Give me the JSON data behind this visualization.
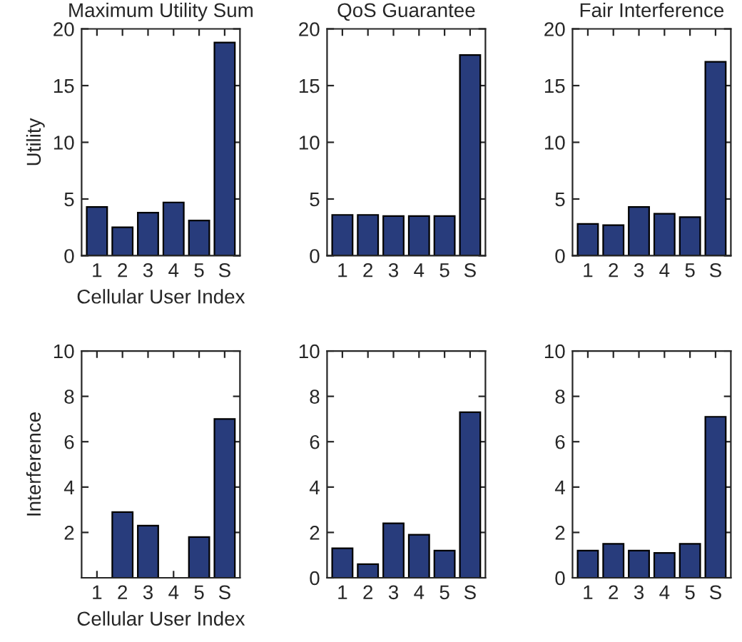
{
  "chart_data": [
    {
      "type": "bar",
      "title": "Maximum Utility Sum",
      "xlabel": "Cellular User Index",
      "ylabel": "Utility",
      "categories": [
        "1",
        "2",
        "3",
        "4",
        "5",
        "S"
      ],
      "values": [
        4.3,
        2.5,
        3.8,
        4.7,
        3.1,
        18.8
      ],
      "color": "#283c7c",
      "ylim": [
        0,
        20
      ],
      "yticks": [
        0,
        5,
        10,
        15,
        20
      ],
      "grid": false
    },
    {
      "type": "bar",
      "title": "QoS Guarantee",
      "categories": [
        "1",
        "2",
        "3",
        "4",
        "5",
        "S"
      ],
      "values": [
        3.6,
        3.6,
        3.5,
        3.5,
        3.5,
        17.7
      ],
      "color": "#283c7c",
      "ylim": [
        0,
        20
      ],
      "yticks": [
        0,
        5,
        10,
        15,
        20
      ],
      "grid": false
    },
    {
      "type": "bar",
      "title": "Fair Interference",
      "categories": [
        "1",
        "2",
        "3",
        "4",
        "5",
        "S"
      ],
      "values": [
        2.8,
        2.7,
        4.3,
        3.7,
        3.4,
        17.1
      ],
      "color": "#283c7c",
      "ylim": [
        0,
        20
      ],
      "yticks": [
        0,
        5,
        10,
        15,
        20
      ],
      "grid": false
    },
    {
      "type": "bar",
      "xlabel": "Cellular User Index",
      "ylabel": "Interference",
      "categories": [
        "1",
        "2",
        "3",
        "4",
        "5",
        "S"
      ],
      "values": [
        0,
        2.9,
        2.3,
        0,
        1.8,
        7.0
      ],
      "color": "#283c7c",
      "ylim": [
        0,
        10
      ],
      "yticks": [
        2,
        4,
        6,
        8,
        10
      ],
      "grid": false
    },
    {
      "type": "bar",
      "categories": [
        "1",
        "2",
        "3",
        "4",
        "5",
        "S"
      ],
      "values": [
        1.3,
        0.6,
        2.4,
        1.9,
        1.2,
        7.3
      ],
      "color": "#283c7c",
      "ylim": [
        0,
        10
      ],
      "yticks": [
        0,
        2,
        4,
        6,
        8,
        10
      ],
      "grid": false
    },
    {
      "type": "bar",
      "categories": [
        "1",
        "2",
        "3",
        "4",
        "5",
        "S"
      ],
      "values": [
        1.2,
        1.5,
        1.2,
        1.1,
        1.5,
        7.1
      ],
      "color": "#283c7c",
      "ylim": [
        0,
        10
      ],
      "yticks": [
        0,
        2,
        4,
        6,
        8,
        10
      ],
      "grid": false
    }
  ]
}
